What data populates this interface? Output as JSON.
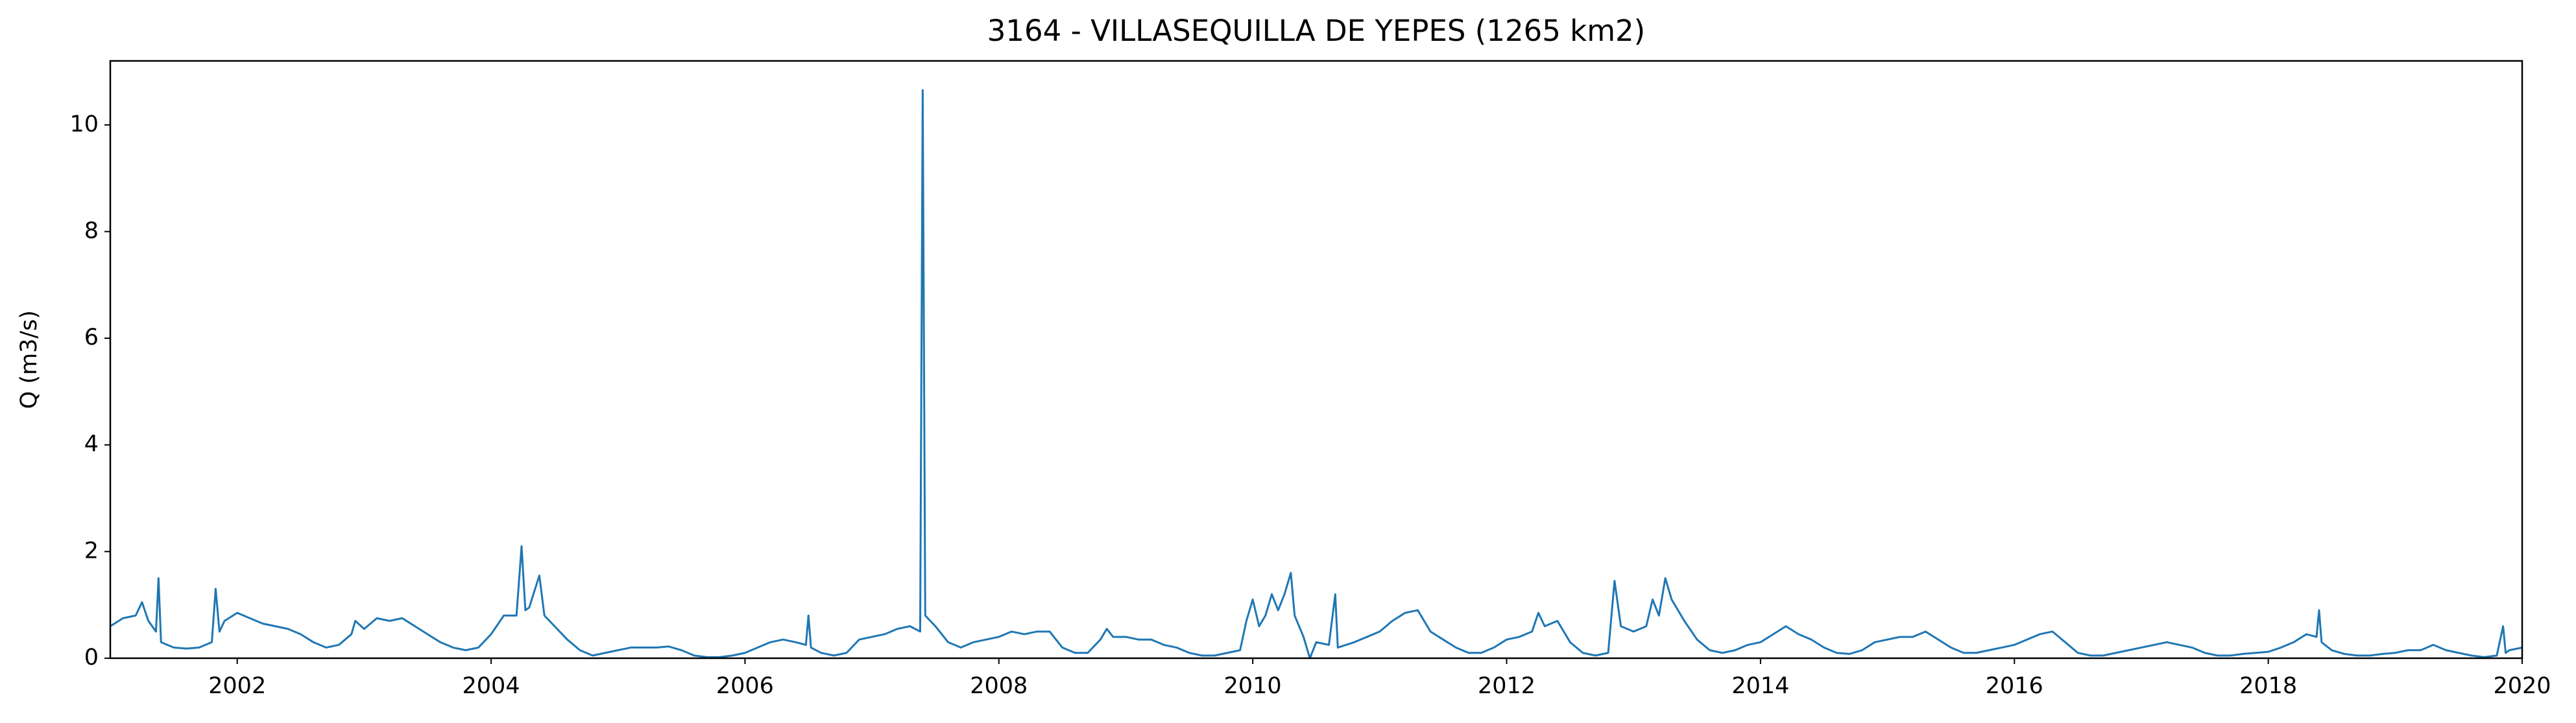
{
  "chart_data": {
    "type": "line",
    "title": "3164 - VILLASEQUILLA DE YEPES (1265 km2)",
    "ylabel": "Q (m3/s)",
    "xlim": [
      2001,
      2020
    ],
    "xticks": [
      2002,
      2004,
      2006,
      2008,
      2010,
      2012,
      2014,
      2016,
      2018,
      2020
    ],
    "ylim": [
      0,
      11.2
    ],
    "yticks": [
      0,
      2,
      4,
      6,
      8,
      10
    ],
    "grid": false,
    "x": [
      2001.0,
      2001.1,
      2001.2,
      2001.25,
      2001.3,
      2001.36,
      2001.38,
      2001.4,
      2001.5,
      2001.6,
      2001.7,
      2001.8,
      2001.83,
      2001.86,
      2001.9,
      2002.0,
      2002.1,
      2002.2,
      2002.3,
      2002.4,
      2002.5,
      2002.6,
      2002.7,
      2002.8,
      2002.9,
      2002.93,
      2003.0,
      2003.1,
      2003.2,
      2003.3,
      2003.4,
      2003.5,
      2003.6,
      2003.7,
      2003.8,
      2003.9,
      2004.0,
      2004.1,
      2004.2,
      2004.24,
      2004.27,
      2004.3,
      2004.38,
      2004.42,
      2004.5,
      2004.6,
      2004.7,
      2004.8,
      2004.9,
      2005.0,
      2005.1,
      2005.2,
      2005.3,
      2005.4,
      2005.5,
      2005.6,
      2005.7,
      2005.8,
      2005.9,
      2006.0,
      2006.1,
      2006.2,
      2006.3,
      2006.4,
      2006.48,
      2006.5,
      2006.52,
      2006.6,
      2006.7,
      2006.8,
      2006.9,
      2007.0,
      2007.1,
      2007.2,
      2007.3,
      2007.38,
      2007.4,
      2007.42,
      2007.5,
      2007.6,
      2007.7,
      2007.8,
      2007.9,
      2008.0,
      2008.1,
      2008.2,
      2008.3,
      2008.4,
      2008.5,
      2008.6,
      2008.7,
      2008.8,
      2008.85,
      2008.9,
      2009.0,
      2009.1,
      2009.2,
      2009.3,
      2009.4,
      2009.5,
      2009.6,
      2009.7,
      2009.8,
      2009.9,
      2009.95,
      2010.0,
      2010.05,
      2010.1,
      2010.15,
      2010.2,
      2010.25,
      2010.3,
      2010.33,
      2010.4,
      2010.45,
      2010.5,
      2010.6,
      2010.65,
      2010.67,
      2010.8,
      2010.9,
      2011.0,
      2011.1,
      2011.2,
      2011.3,
      2011.4,
      2011.5,
      2011.6,
      2011.7,
      2011.8,
      2011.9,
      2012.0,
      2012.1,
      2012.2,
      2012.25,
      2012.3,
      2012.4,
      2012.5,
      2012.6,
      2012.7,
      2012.8,
      2012.85,
      2012.9,
      2013.0,
      2013.1,
      2013.15,
      2013.2,
      2013.25,
      2013.3,
      2013.4,
      2013.5,
      2013.6,
      2013.7,
      2013.8,
      2013.9,
      2014.0,
      2014.1,
      2014.2,
      2014.3,
      2014.4,
      2014.5,
      2014.6,
      2014.7,
      2014.8,
      2014.9,
      2015.0,
      2015.1,
      2015.2,
      2015.3,
      2015.4,
      2015.5,
      2015.6,
      2015.7,
      2015.8,
      2015.9,
      2016.0,
      2016.1,
      2016.2,
      2016.3,
      2016.4,
      2016.5,
      2016.6,
      2016.7,
      2016.8,
      2016.9,
      2017.0,
      2017.1,
      2017.2,
      2017.3,
      2017.4,
      2017.5,
      2017.6,
      2017.7,
      2017.8,
      2017.9,
      2018.0,
      2018.1,
      2018.2,
      2018.3,
      2018.38,
      2018.4,
      2018.42,
      2018.5,
      2018.6,
      2018.7,
      2018.8,
      2018.9,
      2019.0,
      2019.1,
      2019.2,
      2019.3,
      2019.4,
      2019.5,
      2019.6,
      2019.7,
      2019.8,
      2019.85,
      2019.87,
      2019.9,
      2020.0
    ],
    "series": [
      {
        "name": "Q",
        "color": "#1f77b4",
        "values": [
          0.6,
          0.75,
          0.8,
          1.05,
          0.7,
          0.5,
          1.5,
          0.3,
          0.2,
          0.18,
          0.2,
          0.3,
          1.3,
          0.5,
          0.7,
          0.85,
          0.75,
          0.65,
          0.6,
          0.55,
          0.45,
          0.3,
          0.2,
          0.25,
          0.45,
          0.7,
          0.55,
          0.75,
          0.7,
          0.75,
          0.6,
          0.45,
          0.3,
          0.2,
          0.15,
          0.2,
          0.45,
          0.8,
          0.8,
          2.1,
          0.9,
          0.95,
          1.55,
          0.8,
          0.6,
          0.35,
          0.15,
          0.05,
          0.1,
          0.15,
          0.2,
          0.2,
          0.2,
          0.22,
          0.15,
          0.05,
          0.02,
          0.02,
          0.05,
          0.1,
          0.2,
          0.3,
          0.35,
          0.3,
          0.25,
          0.8,
          0.2,
          0.1,
          0.05,
          0.1,
          0.35,
          0.4,
          0.45,
          0.55,
          0.6,
          0.5,
          10.65,
          0.8,
          0.6,
          0.3,
          0.2,
          0.3,
          0.35,
          0.4,
          0.5,
          0.45,
          0.5,
          0.5,
          0.2,
          0.1,
          0.1,
          0.35,
          0.55,
          0.4,
          0.4,
          0.35,
          0.35,
          0.25,
          0.2,
          0.1,
          0.05,
          0.05,
          0.1,
          0.15,
          0.7,
          1.1,
          0.6,
          0.8,
          1.2,
          0.9,
          1.2,
          1.6,
          0.8,
          0.4,
          0.0,
          0.3,
          0.25,
          1.2,
          0.2,
          0.3,
          0.4,
          0.5,
          0.7,
          0.85,
          0.9,
          0.5,
          0.35,
          0.2,
          0.1,
          0.1,
          0.2,
          0.35,
          0.4,
          0.5,
          0.85,
          0.6,
          0.7,
          0.3,
          0.1,
          0.05,
          0.1,
          1.45,
          0.6,
          0.5,
          0.6,
          1.1,
          0.8,
          1.5,
          1.1,
          0.7,
          0.35,
          0.15,
          0.1,
          0.15,
          0.25,
          0.3,
          0.45,
          0.6,
          0.45,
          0.35,
          0.2,
          0.1,
          0.08,
          0.15,
          0.3,
          0.35,
          0.4,
          0.4,
          0.5,
          0.35,
          0.2,
          0.1,
          0.1,
          0.15,
          0.2,
          0.25,
          0.35,
          0.45,
          0.5,
          0.3,
          0.1,
          0.05,
          0.05,
          0.1,
          0.15,
          0.2,
          0.25,
          0.3,
          0.25,
          0.2,
          0.1,
          0.05,
          0.05,
          0.08,
          0.1,
          0.12,
          0.2,
          0.3,
          0.45,
          0.4,
          0.9,
          0.3,
          0.15,
          0.08,
          0.05,
          0.05,
          0.08,
          0.1,
          0.15,
          0.15,
          0.25,
          0.15,
          0.1,
          0.05,
          0.02,
          0.05,
          0.6,
          0.1,
          0.15,
          0.2
        ]
      }
    ]
  }
}
